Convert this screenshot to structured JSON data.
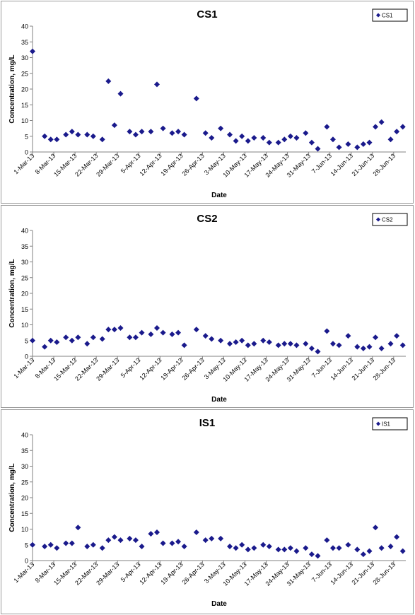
{
  "colors": {
    "marker": "#1a1a8c",
    "axis": "#808080",
    "border": "#9a9a9a"
  },
  "date_ticks": [
    "1-Mar-13",
    "8-Mar-13",
    "15-Mar-13",
    "22-Mar-13",
    "29-Mar-13",
    "5-Apr-13",
    "12-Apr-13",
    "19-Apr-13",
    "26-Apr-13",
    "3-May-13",
    "10-May-13",
    "17-May-13",
    "24-May-13",
    "31-May-13",
    "7-Jun-13",
    "14-Jun-13",
    "21-Jun-13",
    "28-Jun-13"
  ],
  "chart_data": [
    {
      "type": "scatter",
      "title": "CS1",
      "xlabel": "Date",
      "ylabel": "Concentration, mg/L",
      "ylim": [
        0,
        40
      ],
      "yticks": [
        0,
        5,
        10,
        15,
        20,
        25,
        30,
        35,
        40
      ],
      "xlim": [
        "2013-03-01",
        "2013-06-30"
      ],
      "grid": false,
      "legend": "top-right",
      "series": [
        {
          "name": "CS1",
          "marker": "diamond",
          "points": [
            [
              "2013-03-01",
              32.0
            ],
            [
              "2013-03-05",
              5.0
            ],
            [
              "2013-03-07",
              4.0
            ],
            [
              "2013-03-09",
              4.0
            ],
            [
              "2013-03-12",
              5.5
            ],
            [
              "2013-03-14",
              6.5
            ],
            [
              "2013-03-16",
              5.5
            ],
            [
              "2013-03-19",
              5.5
            ],
            [
              "2013-03-21",
              5.0
            ],
            [
              "2013-03-24",
              4.0
            ],
            [
              "2013-03-26",
              22.5
            ],
            [
              "2013-03-28",
              8.5
            ],
            [
              "2013-03-30",
              18.5
            ],
            [
              "2013-04-02",
              6.5
            ],
            [
              "2013-04-04",
              5.5
            ],
            [
              "2013-04-06",
              6.5
            ],
            [
              "2013-04-09",
              6.5
            ],
            [
              "2013-04-11",
              21.5
            ],
            [
              "2013-04-13",
              7.5
            ],
            [
              "2013-04-16",
              6.0
            ],
            [
              "2013-04-18",
              6.5
            ],
            [
              "2013-04-20",
              5.5
            ],
            [
              "2013-04-24",
              17.0
            ],
            [
              "2013-04-27",
              6.0
            ],
            [
              "2013-04-29",
              4.5
            ],
            [
              "2013-05-02",
              7.5
            ],
            [
              "2013-05-05",
              5.5
            ],
            [
              "2013-05-07",
              3.5
            ],
            [
              "2013-05-09",
              5.0
            ],
            [
              "2013-05-11",
              3.5
            ],
            [
              "2013-05-13",
              4.5
            ],
            [
              "2013-05-16",
              4.5
            ],
            [
              "2013-05-18",
              3.0
            ],
            [
              "2013-05-21",
              3.0
            ],
            [
              "2013-05-23",
              4.0
            ],
            [
              "2013-05-25",
              5.0
            ],
            [
              "2013-05-27",
              4.5
            ],
            [
              "2013-05-30",
              6.0
            ],
            [
              "2013-06-01",
              3.0
            ],
            [
              "2013-06-03",
              1.0
            ],
            [
              "2013-06-06",
              8.0
            ],
            [
              "2013-06-08",
              4.0
            ],
            [
              "2013-06-10",
              1.5
            ],
            [
              "2013-06-13",
              2.5
            ],
            [
              "2013-06-16",
              1.5
            ],
            [
              "2013-06-18",
              2.5
            ],
            [
              "2013-06-20",
              3.0
            ],
            [
              "2013-06-22",
              8.0
            ],
            [
              "2013-06-24",
              9.5
            ],
            [
              "2013-06-27",
              4.0
            ],
            [
              "2013-06-29",
              6.5
            ],
            [
              "2013-07-01",
              8.0
            ]
          ]
        }
      ]
    },
    {
      "type": "scatter",
      "title": "CS2",
      "xlabel": "Date",
      "ylabel": "Concentration, mg/L",
      "ylim": [
        0,
        40
      ],
      "yticks": [
        0,
        5,
        10,
        15,
        20,
        25,
        30,
        35,
        40
      ],
      "xlim": [
        "2013-03-01",
        "2013-06-30"
      ],
      "grid": false,
      "legend": "top-right",
      "series": [
        {
          "name": "CS2",
          "marker": "diamond",
          "points": [
            [
              "2013-03-01",
              5.0
            ],
            [
              "2013-03-05",
              3.0
            ],
            [
              "2013-03-07",
              5.0
            ],
            [
              "2013-03-09",
              4.5
            ],
            [
              "2013-03-12",
              6.0
            ],
            [
              "2013-03-14",
              5.0
            ],
            [
              "2013-03-16",
              6.0
            ],
            [
              "2013-03-19",
              4.0
            ],
            [
              "2013-03-21",
              6.0
            ],
            [
              "2013-03-24",
              5.5
            ],
            [
              "2013-03-26",
              8.5
            ],
            [
              "2013-03-28",
              8.5
            ],
            [
              "2013-03-30",
              9.0
            ],
            [
              "2013-04-02",
              6.0
            ],
            [
              "2013-04-04",
              6.0
            ],
            [
              "2013-04-06",
              7.5
            ],
            [
              "2013-04-09",
              7.0
            ],
            [
              "2013-04-11",
              9.0
            ],
            [
              "2013-04-13",
              7.5
            ],
            [
              "2013-04-16",
              7.0
            ],
            [
              "2013-04-18",
              7.5
            ],
            [
              "2013-04-20",
              3.5
            ],
            [
              "2013-04-24",
              8.5
            ],
            [
              "2013-04-27",
              6.5
            ],
            [
              "2013-04-29",
              5.5
            ],
            [
              "2013-05-02",
              5.0
            ],
            [
              "2013-05-05",
              4.0
            ],
            [
              "2013-05-07",
              4.5
            ],
            [
              "2013-05-09",
              5.0
            ],
            [
              "2013-05-11",
              3.5
            ],
            [
              "2013-05-13",
              4.0
            ],
            [
              "2013-05-16",
              5.0
            ],
            [
              "2013-05-18",
              4.5
            ],
            [
              "2013-05-21",
              3.5
            ],
            [
              "2013-05-23",
              4.0
            ],
            [
              "2013-05-25",
              4.0
            ],
            [
              "2013-05-27",
              3.5
            ],
            [
              "2013-05-30",
              4.0
            ],
            [
              "2013-06-01",
              2.5
            ],
            [
              "2013-06-03",
              1.5
            ],
            [
              "2013-06-06",
              8.0
            ],
            [
              "2013-06-08",
              4.0
            ],
            [
              "2013-06-10",
              3.5
            ],
            [
              "2013-06-13",
              6.5
            ],
            [
              "2013-06-16",
              3.0
            ],
            [
              "2013-06-18",
              2.5
            ],
            [
              "2013-06-20",
              3.0
            ],
            [
              "2013-06-22",
              6.0
            ],
            [
              "2013-06-24",
              2.5
            ],
            [
              "2013-06-27",
              4.0
            ],
            [
              "2013-06-29",
              6.5
            ],
            [
              "2013-07-01",
              3.5
            ]
          ]
        }
      ]
    },
    {
      "type": "scatter",
      "title": "IS1",
      "xlabel": "Date",
      "ylabel": "Concentration, mg/L",
      "ylim": [
        0,
        40
      ],
      "yticks": [
        0,
        5,
        10,
        15,
        20,
        25,
        30,
        35,
        40
      ],
      "xlim": [
        "2013-03-01",
        "2013-06-30"
      ],
      "grid": false,
      "legend": "top-right",
      "series": [
        {
          "name": "IS1",
          "marker": "diamond",
          "points": [
            [
              "2013-03-01",
              5.0
            ],
            [
              "2013-03-05",
              4.5
            ],
            [
              "2013-03-07",
              5.0
            ],
            [
              "2013-03-09",
              4.0
            ],
            [
              "2013-03-12",
              5.5
            ],
            [
              "2013-03-14",
              5.5
            ],
            [
              "2013-03-16",
              10.5
            ],
            [
              "2013-03-19",
              4.5
            ],
            [
              "2013-03-21",
              5.0
            ],
            [
              "2013-03-24",
              4.0
            ],
            [
              "2013-03-26",
              6.5
            ],
            [
              "2013-03-28",
              7.5
            ],
            [
              "2013-03-30",
              6.5
            ],
            [
              "2013-04-02",
              7.0
            ],
            [
              "2013-04-04",
              6.5
            ],
            [
              "2013-04-06",
              4.5
            ],
            [
              "2013-04-09",
              8.5
            ],
            [
              "2013-04-11",
              9.0
            ],
            [
              "2013-04-13",
              5.5
            ],
            [
              "2013-04-16",
              5.5
            ],
            [
              "2013-04-18",
              6.0
            ],
            [
              "2013-04-20",
              4.5
            ],
            [
              "2013-04-24",
              9.0
            ],
            [
              "2013-04-27",
              6.5
            ],
            [
              "2013-04-29",
              7.0
            ],
            [
              "2013-05-02",
              7.0
            ],
            [
              "2013-05-05",
              4.5
            ],
            [
              "2013-05-07",
              4.0
            ],
            [
              "2013-05-09",
              5.0
            ],
            [
              "2013-05-11",
              3.5
            ],
            [
              "2013-05-13",
              4.0
            ],
            [
              "2013-05-16",
              5.0
            ],
            [
              "2013-05-18",
              4.5
            ],
            [
              "2013-05-21",
              3.5
            ],
            [
              "2013-05-23",
              3.5
            ],
            [
              "2013-05-25",
              4.0
            ],
            [
              "2013-05-27",
              3.0
            ],
            [
              "2013-05-30",
              4.0
            ],
            [
              "2013-06-01",
              2.0
            ],
            [
              "2013-06-03",
              1.5
            ],
            [
              "2013-06-06",
              6.5
            ],
            [
              "2013-06-08",
              4.0
            ],
            [
              "2013-06-10",
              4.0
            ],
            [
              "2013-06-13",
              5.0
            ],
            [
              "2013-06-16",
              3.5
            ],
            [
              "2013-06-18",
              2.0
            ],
            [
              "2013-06-20",
              3.0
            ],
            [
              "2013-06-22",
              10.5
            ],
            [
              "2013-06-24",
              4.0
            ],
            [
              "2013-06-27",
              4.5
            ],
            [
              "2013-06-29",
              7.5
            ],
            [
              "2013-07-01",
              3.0
            ]
          ]
        }
      ]
    }
  ]
}
